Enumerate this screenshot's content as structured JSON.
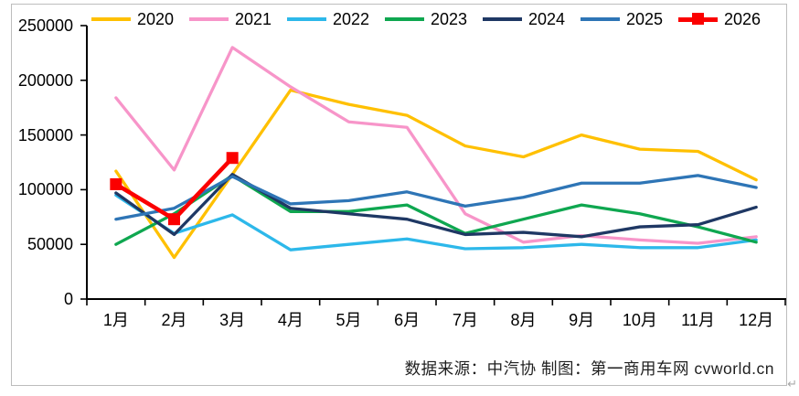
{
  "chart_data": {
    "type": "line",
    "title": "",
    "xlabel": "",
    "ylabel": "",
    "categories": [
      "1月",
      "2月",
      "3月",
      "4月",
      "5月",
      "6月",
      "7月",
      "8月",
      "9月",
      "10月",
      "11月",
      "12月"
    ],
    "ylim": [
      0,
      250000
    ],
    "yticks": [
      0,
      50000,
      100000,
      150000,
      200000,
      250000
    ],
    "grid": false,
    "legend_position": "top",
    "series": [
      {
        "name": "2020",
        "color": "#FFC000",
        "marker": "none",
        "values": [
          117000,
          38000,
          114000,
          191000,
          178000,
          168000,
          140000,
          130000,
          150000,
          137000,
          135000,
          109000
        ]
      },
      {
        "name": "2021",
        "color": "#F795C9",
        "marker": "none",
        "values": [
          184000,
          118000,
          230000,
          194000,
          162000,
          157000,
          78000,
          52000,
          58000,
          54000,
          51000,
          57000
        ]
      },
      {
        "name": "2022",
        "color": "#2DB8EA",
        "marker": "none",
        "values": [
          95000,
          60000,
          77000,
          45000,
          50000,
          55000,
          46000,
          47000,
          50000,
          47000,
          47000,
          54000
        ]
      },
      {
        "name": "2023",
        "color": "#0FA750",
        "marker": "none",
        "values": [
          50000,
          78000,
          113000,
          80000,
          80000,
          86000,
          60000,
          73000,
          86000,
          78000,
          66000,
          52000
        ]
      },
      {
        "name": "2024",
        "color": "#1F3864",
        "marker": "none",
        "values": [
          97000,
          59000,
          114000,
          83000,
          78000,
          73000,
          59000,
          61000,
          57000,
          66000,
          68000,
          84000
        ]
      },
      {
        "name": "2025",
        "color": "#2E75B6",
        "marker": "none",
        "values": [
          73000,
          83000,
          112000,
          87000,
          90000,
          98000,
          85000,
          93000,
          106000,
          106000,
          113000,
          102000
        ]
      },
      {
        "name": "2026",
        "color": "#FB0000",
        "marker": "square",
        "values": [
          105000,
          73000,
          129000,
          null,
          null,
          null,
          null,
          null,
          null,
          null,
          null,
          null
        ]
      }
    ]
  },
  "footer": {
    "source_text": "数据来源：中汽协 制图：第一商用车网 cvworld.cn",
    "return_mark": "↵"
  }
}
